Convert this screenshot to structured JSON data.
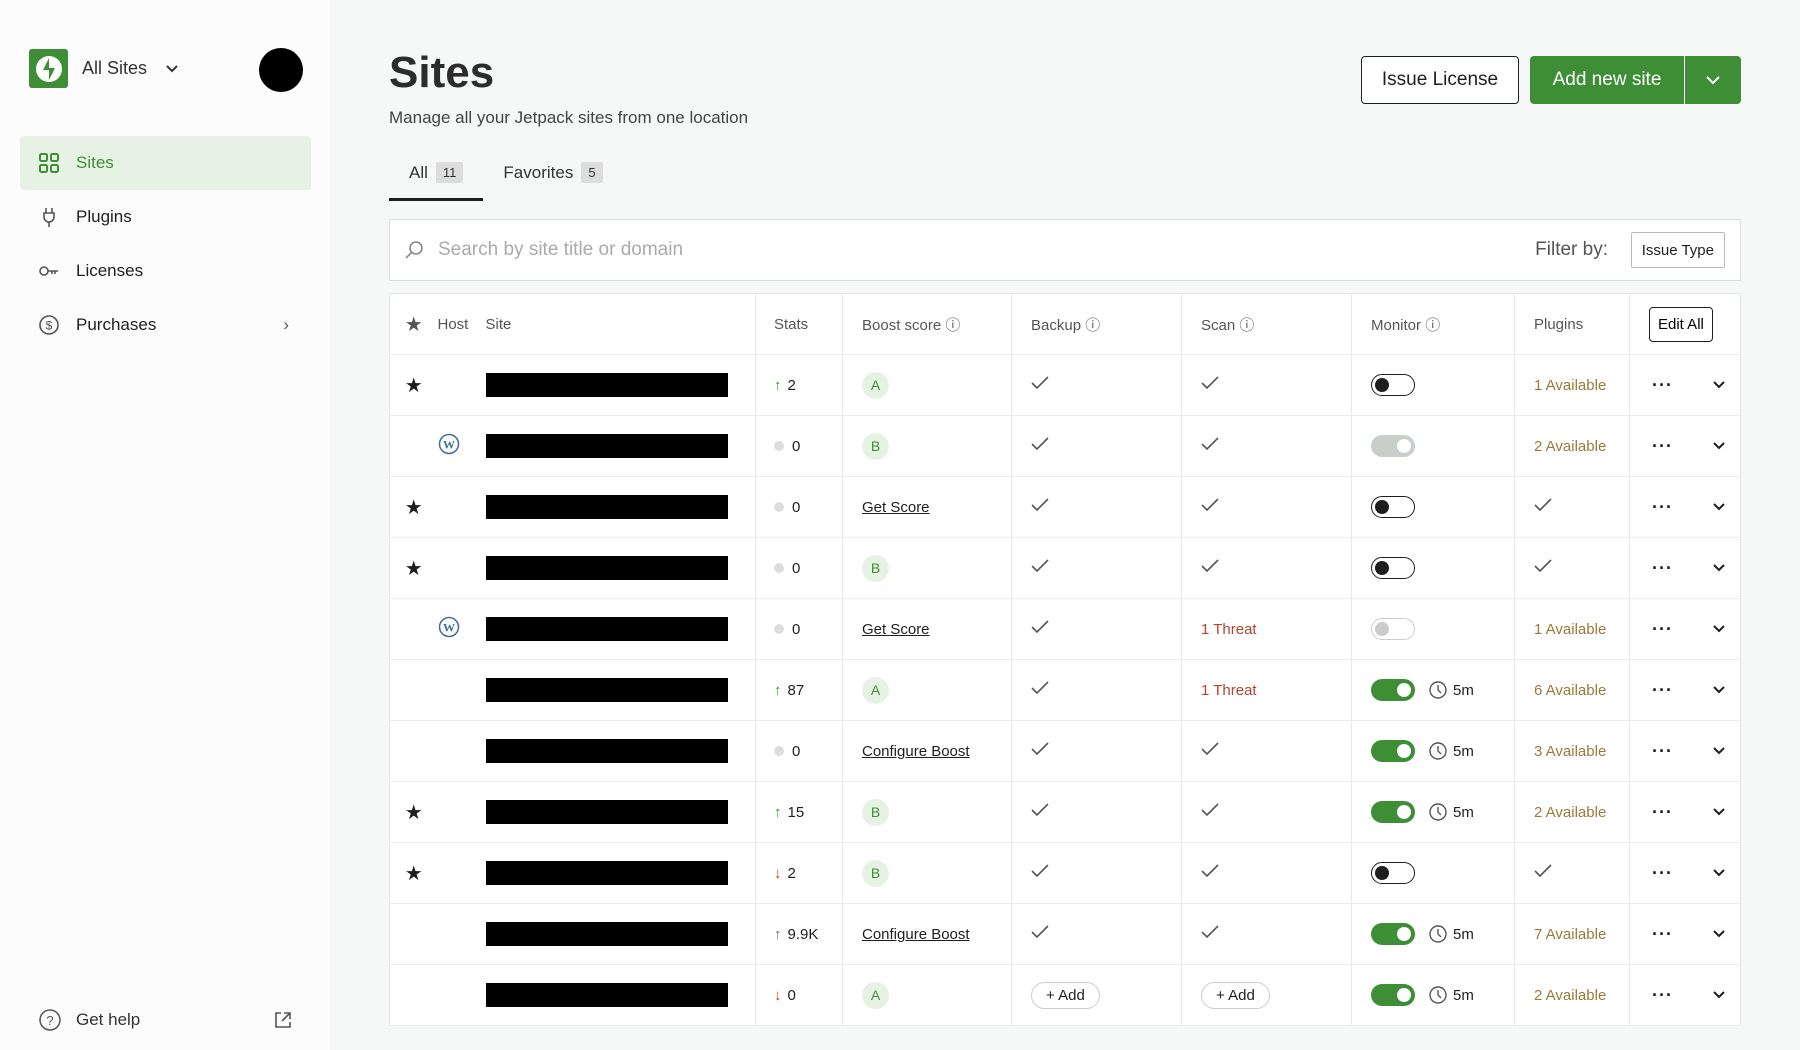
{
  "sidebar": {
    "site_selector": "All Sites",
    "items": [
      {
        "label": "Sites",
        "icon": "grid-icon",
        "active": true
      },
      {
        "label": "Plugins",
        "icon": "plug-icon"
      },
      {
        "label": "Licenses",
        "icon": "key-icon"
      },
      {
        "label": "Purchases",
        "icon": "dollar-icon"
      }
    ],
    "help": "Get help"
  },
  "header": {
    "title": "Sites",
    "subtitle": "Manage all your Jetpack sites from one location",
    "issue_license": "Issue License",
    "add_site": "Add new site"
  },
  "tabs": [
    {
      "label": "All",
      "count": "11"
    },
    {
      "label": "Favorites",
      "count": "5"
    }
  ],
  "search": {
    "placeholder": "Search by site title or domain",
    "filter_label": "Filter by:",
    "filter_button": "Issue Type"
  },
  "table": {
    "headers": {
      "host": "Host",
      "site": "Site",
      "stats": "Stats",
      "boost": "Boost score",
      "backup": "Backup",
      "scan": "Scan",
      "monitor": "Monitor",
      "plugins": "Plugins",
      "edit_all": "Edit All"
    },
    "rows": [
      {
        "fav": true,
        "wp": false,
        "trend": "up",
        "stats": "2",
        "boost": "A",
        "backup": "ok",
        "scan": "ok",
        "monitor": "off",
        "interval": "",
        "plugins": "1 Available"
      },
      {
        "fav": false,
        "wp": true,
        "trend": "flat",
        "stats": "0",
        "boost": "B",
        "backup": "ok",
        "scan": "ok",
        "monitor": "disabled-on",
        "interval": "",
        "plugins": "2 Available"
      },
      {
        "fav": true,
        "wp": false,
        "trend": "flat",
        "stats": "0",
        "boost": "Get Score",
        "backup": "ok",
        "scan": "ok",
        "monitor": "off",
        "interval": "",
        "plugins": "ok"
      },
      {
        "fav": true,
        "wp": false,
        "trend": "flat",
        "stats": "0",
        "boost": "B",
        "backup": "ok",
        "scan": "ok",
        "monitor": "off",
        "interval": "",
        "plugins": "ok"
      },
      {
        "fav": false,
        "wp": true,
        "trend": "flat",
        "stats": "0",
        "boost": "Get Score",
        "backup": "ok",
        "scan": "1 Threat",
        "monitor": "disabled-off",
        "interval": "",
        "plugins": "1 Available"
      },
      {
        "fav": false,
        "wp": false,
        "trend": "up",
        "stats": "87",
        "boost": "A",
        "backup": "ok",
        "scan": "1 Threat",
        "monitor": "on",
        "interval": "5m",
        "plugins": "6 Available"
      },
      {
        "fav": false,
        "wp": false,
        "trend": "flat",
        "stats": "0",
        "boost": "Configure Boost",
        "backup": "ok",
        "scan": "ok",
        "monitor": "on",
        "interval": "5m",
        "plugins": "3 Available"
      },
      {
        "fav": true,
        "wp": false,
        "trend": "up",
        "stats": "15",
        "boost": "B",
        "backup": "ok",
        "scan": "ok",
        "monitor": "on",
        "interval": "5m",
        "plugins": "2 Available"
      },
      {
        "fav": true,
        "wp": false,
        "trend": "down",
        "stats": "2",
        "boost": "B",
        "backup": "ok",
        "scan": "ok",
        "monitor": "off",
        "interval": "",
        "plugins": "ok"
      },
      {
        "fav": false,
        "wp": false,
        "trend": "up",
        "stats": "9.9K",
        "boost": "Configure Boost",
        "backup": "ok",
        "scan": "ok",
        "monitor": "on",
        "interval": "5m",
        "plugins": "7 Available"
      },
      {
        "fav": false,
        "wp": false,
        "trend": "down",
        "stats": "0",
        "boost": "A",
        "backup": "Add",
        "scan": "Add",
        "monitor": "on",
        "interval": "5m",
        "plugins": "2 Available"
      }
    ]
  },
  "colors": {
    "brand": "#3e8e35",
    "threat": "#b3442e",
    "available": "#9a7a3a"
  }
}
